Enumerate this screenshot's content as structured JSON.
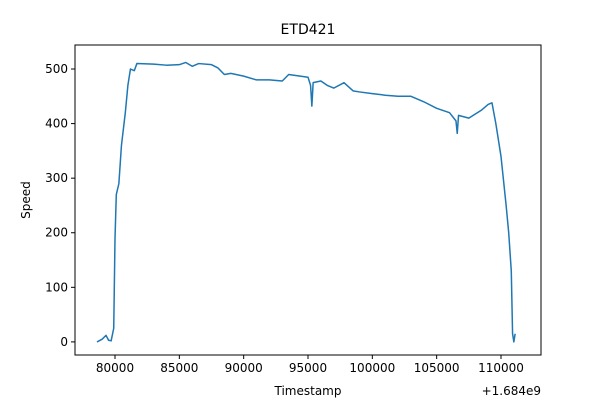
{
  "chart_data": {
    "type": "line",
    "title": "ETD421",
    "x_label": "Timestamp",
    "y_label": "Speed",
    "x_offset_label": "+1.684e9",
    "x": [
      78600,
      79000,
      79300,
      79500,
      79700,
      79900,
      80000,
      80100,
      80300,
      80500,
      80800,
      81000,
      81200,
      81500,
      81700,
      83000,
      84000,
      85000,
      85500,
      86000,
      86500,
      87500,
      88000,
      88500,
      89000,
      90000,
      91000,
      92000,
      93000,
      93500,
      95000,
      95200,
      95300,
      95400,
      96000,
      96500,
      97000,
      97800,
      98500,
      99000,
      100000,
      101000,
      102000,
      103000,
      104000,
      105000,
      106000,
      106500,
      106600,
      106700,
      107500,
      108500,
      109000,
      109300,
      109600,
      110000,
      110400,
      110600,
      110800,
      110900,
      111000,
      111100
    ],
    "series": [
      {
        "name": "Speed",
        "color": "#1f77b4",
        "values": [
          0,
          5,
          12,
          3,
          2,
          25,
          190,
          270,
          290,
          360,
          420,
          470,
          500,
          497,
          510,
          509,
          507,
          508,
          512,
          505,
          510,
          508,
          502,
          490,
          492,
          487,
          480,
          480,
          478,
          490,
          485,
          470,
          432,
          475,
          478,
          470,
          465,
          475,
          460,
          458,
          455,
          452,
          450,
          450,
          440,
          428,
          420,
          405,
          382,
          415,
          410,
          425,
          435,
          438,
          400,
          340,
          250,
          200,
          130,
          15,
          0,
          15
        ]
      }
    ],
    "xlim": [
      76890,
      113110
    ],
    "xticks": [
      80000,
      85000,
      90000,
      95000,
      100000,
      105000,
      110000
    ],
    "ylim": [
      -24,
      544
    ],
    "yticks": [
      0,
      100,
      200,
      300,
      400,
      500
    ],
    "grid": false
  }
}
